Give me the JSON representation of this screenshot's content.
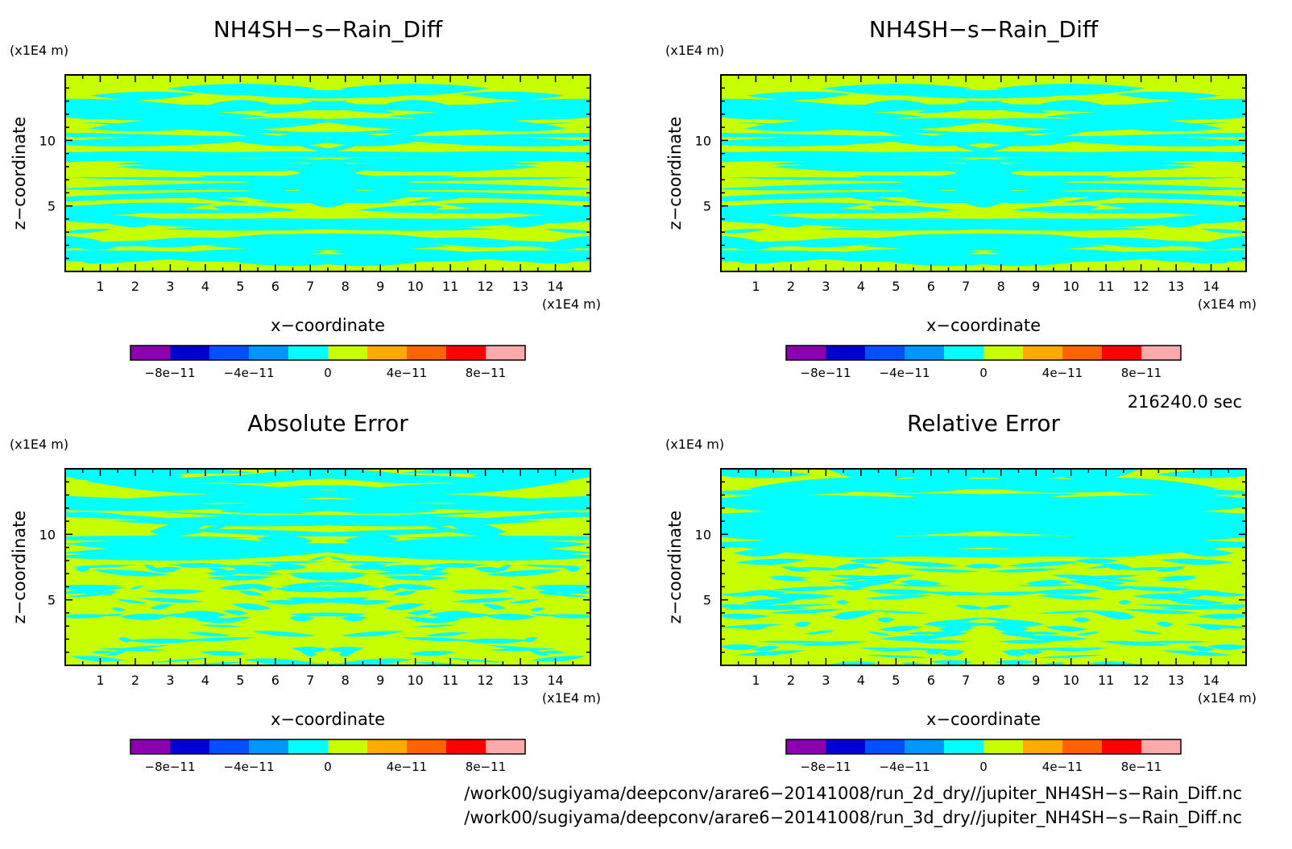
{
  "chart_data": [
    {
      "type": "heatmap",
      "title": "NH4SH−s−Rain_Diff",
      "xlabel": "x−coordinate",
      "ylabel": "z−coordinate",
      "x_unit": "(x1E4 m)",
      "y_unit": "(x1E4 m)",
      "xlim": [
        0,
        15
      ],
      "ylim": [
        0,
        15
      ],
      "xticks": [
        "1",
        "2",
        "3",
        "4",
        "5",
        "6",
        "7",
        "8",
        "9",
        "10",
        "11",
        "12",
        "13",
        "14"
      ],
      "yticks": [
        "5",
        "10"
      ],
      "colorbar_labels": [
        "−8e−11",
        "−4e−11",
        "0",
        "4e−11",
        "8e−11"
      ],
      "pattern": "smooth"
    },
    {
      "type": "heatmap",
      "title": "NH4SH−s−Rain_Diff",
      "xlabel": "x−coordinate",
      "ylabel": "z−coordinate",
      "x_unit": "(x1E4 m)",
      "y_unit": "(x1E4 m)",
      "xlim": [
        0,
        15
      ],
      "ylim": [
        0,
        15
      ],
      "xticks": [
        "1",
        "2",
        "3",
        "4",
        "5",
        "6",
        "7",
        "8",
        "9",
        "10",
        "11",
        "12",
        "13",
        "14"
      ],
      "yticks": [
        "5",
        "10"
      ],
      "colorbar_labels": [
        "−8e−11",
        "−4e−11",
        "0",
        "4e−11",
        "8e−11"
      ],
      "pattern": "smooth"
    },
    {
      "type": "heatmap",
      "title": "Absolute Error",
      "xlabel": "x−coordinate",
      "ylabel": "z−coordinate",
      "x_unit": "(x1E4 m)",
      "y_unit": "(x1E4 m)",
      "xlim": [
        0,
        15
      ],
      "ylim": [
        0,
        15
      ],
      "xticks": [
        "1",
        "2",
        "3",
        "4",
        "5",
        "6",
        "7",
        "8",
        "9",
        "10",
        "11",
        "12",
        "13",
        "14"
      ],
      "yticks": [
        "5",
        "10"
      ],
      "colorbar_labels": [
        "−8e−11",
        "−4e−11",
        "0",
        "4e−11",
        "8e−11"
      ],
      "pattern": "noisy"
    },
    {
      "type": "heatmap",
      "title": "Relative Error",
      "xlabel": "x−coordinate",
      "ylabel": "z−coordinate",
      "x_unit": "(x1E4 m)",
      "y_unit": "(x1E4 m)",
      "xlim": [
        0,
        15
      ],
      "ylim": [
        0,
        15
      ],
      "xticks": [
        "1",
        "2",
        "3",
        "4",
        "5",
        "6",
        "7",
        "8",
        "9",
        "10",
        "11",
        "12",
        "13",
        "14"
      ],
      "yticks": [
        "5",
        "10"
      ],
      "colorbar_labels": [
        "−8e−11",
        "−4e−11",
        "0",
        "4e−11",
        "8e−11"
      ],
      "pattern": "noisy"
    }
  ],
  "colorbar_colors": [
    "#8d00b0",
    "#0000d2",
    "#0050ff",
    "#0096ff",
    "#00ffff",
    "#c8ff00",
    "#ffaa00",
    "#ff6400",
    "#ff0000",
    "#ffaaaa"
  ],
  "field_colors": {
    "cyan": "#00ffff",
    "yellow": "#c8ff00"
  },
  "time_label": "216240.0 sec",
  "file_paths": [
    "/work00/sugiyama/deepconv/arare6−20141008/run_2d_dry//jupiter_NH4SH−s−Rain_Diff.nc",
    "/work00/sugiyama/deepconv/arare6−20141008/run_3d_dry//jupiter_NH4SH−s−Rain_Diff.nc"
  ]
}
